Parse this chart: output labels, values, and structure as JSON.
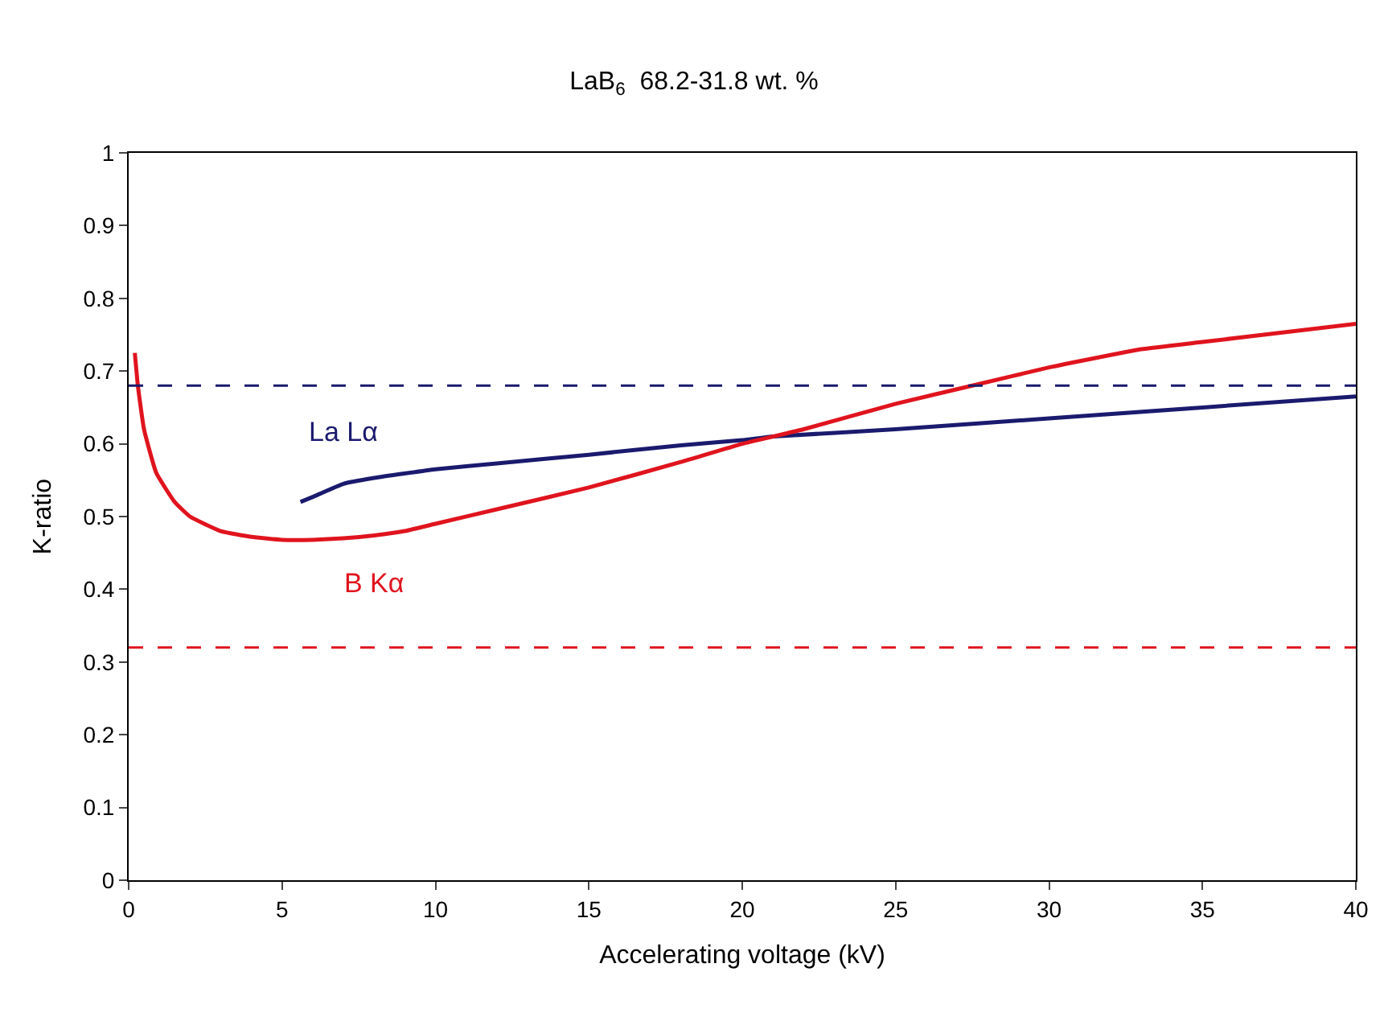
{
  "chart_data": {
    "type": "line",
    "title": "LaB$_{6}$  68.2-31.8 wt. %",
    "xlabel": "Accelerating voltage (kV)",
    "ylabel": "K-ratio",
    "xlim": [
      0,
      40
    ],
    "xticks": [
      0,
      5,
      10,
      15,
      20,
      25,
      30,
      35,
      40
    ],
    "ylim": [
      0,
      1
    ],
    "yticks": [
      0,
      0.1,
      0.2,
      0.3,
      0.4,
      0.5,
      0.6,
      0.7,
      0.8,
      0.9,
      1
    ],
    "legend": false,
    "marker": "none",
    "line_style": "solid",
    "series": [
      {
        "name": "La Lα",
        "color": "#1a1a6e",
        "x": [
          5.6,
          6,
          7,
          8,
          10,
          12,
          15,
          18,
          20,
          21,
          25,
          30,
          35,
          40
        ],
        "values": [
          0.52,
          0.527,
          0.545,
          0.553,
          0.565,
          0.573,
          0.585,
          0.598,
          0.605,
          0.61,
          0.62,
          0.635,
          0.65,
          0.665
        ]
      },
      {
        "name": "B Kα",
        "color": "#e0141e",
        "x": [
          0.2,
          0.3,
          0.5,
          0.9,
          1.5,
          2,
          3,
          4,
          5,
          6,
          7,
          8,
          9,
          10,
          12,
          15,
          18,
          20,
          22,
          25,
          27.5,
          30,
          33,
          35,
          38,
          40
        ],
        "values": [
          0.725,
          0.68,
          0.62,
          0.56,
          0.52,
          0.5,
          0.48,
          0.472,
          0.468,
          0.468,
          0.47,
          0.474,
          0.48,
          0.49,
          0.51,
          0.54,
          0.575,
          0.6,
          0.62,
          0.655,
          0.68,
          0.705,
          0.73,
          0.74,
          0.755,
          0.765
        ]
      }
    ],
    "ref_lines": [
      {
        "axis": "y",
        "value": 0.68,
        "label": null,
        "color": "#1a1a6e",
        "line_style": "dashed"
      },
      {
        "axis": "y",
        "value": 0.32,
        "label": null,
        "color": "#e0141e",
        "line_style": "dashed"
      }
    ]
  }
}
